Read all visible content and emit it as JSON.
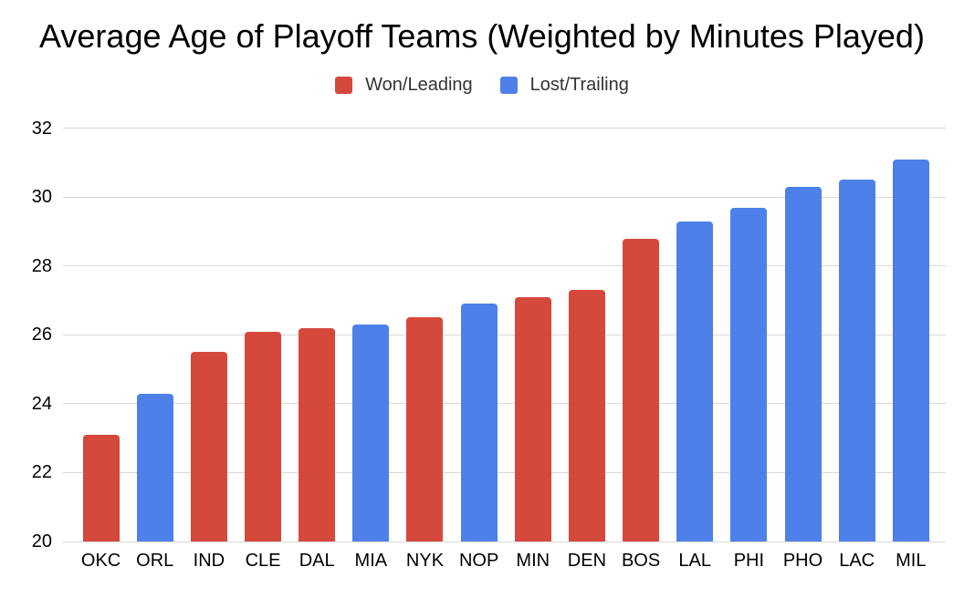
{
  "chart_data": {
    "type": "bar",
    "title": "Average Age of Playoff Teams (Weighted by Minutes Played)",
    "categories": [
      "OKC",
      "ORL",
      "IND",
      "CLE",
      "DAL",
      "MIA",
      "NYK",
      "NOP",
      "MIN",
      "DEN",
      "BOS",
      "LAL",
      "PHI",
      "PHO",
      "LAC",
      "MIL"
    ],
    "values": [
      23.1,
      24.3,
      25.5,
      26.1,
      26.2,
      26.3,
      26.5,
      26.9,
      27.1,
      27.3,
      28.8,
      29.3,
      29.7,
      30.3,
      30.5,
      31.1
    ],
    "bar_groups": [
      "Won/Leading",
      "Lost/Trailing",
      "Won/Leading",
      "Won/Leading",
      "Won/Leading",
      "Lost/Trailing",
      "Won/Leading",
      "Lost/Trailing",
      "Won/Leading",
      "Won/Leading",
      "Won/Leading",
      "Lost/Trailing",
      "Lost/Trailing",
      "Lost/Trailing",
      "Lost/Trailing",
      "Lost/Trailing"
    ],
    "legend": [
      {
        "label": "Won/Leading",
        "color": "#d5493d"
      },
      {
        "label": "Lost/Trailing",
        "color": "#4d81e9"
      }
    ],
    "xlabel": "",
    "ylabel": "",
    "ylim": [
      20,
      32
    ],
    "yticks": [
      20,
      22,
      24,
      26,
      28,
      30,
      32
    ],
    "grid": true,
    "legend_position": "top",
    "gridline_color": "#d9d9d9",
    "background_color": "#ffffff"
  }
}
